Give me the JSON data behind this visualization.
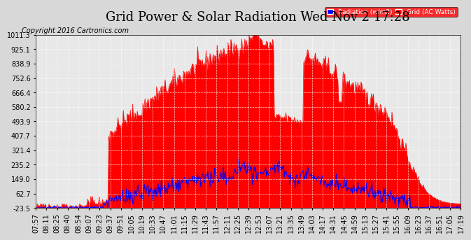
{
  "title": "Grid Power & Solar Radiation Wed Nov 2 17:28",
  "copyright": "Copyright 2016 Cartronics.com",
  "legend_radiation": "Radiation (w/m2)",
  "legend_grid": "Grid (AC Watts)",
  "y_ticks": [
    -23.5,
    62.7,
    149.0,
    235.2,
    321.4,
    407.7,
    493.9,
    580.2,
    666.4,
    752.6,
    838.9,
    925.1,
    1011.3
  ],
  "x_labels": [
    "07:57",
    "08:11",
    "08:25",
    "08:40",
    "08:54",
    "09:07",
    "09:23",
    "09:37",
    "09:51",
    "10:05",
    "10:19",
    "10:33",
    "10:47",
    "11:01",
    "11:15",
    "11:29",
    "11:43",
    "11:57",
    "12:11",
    "12:25",
    "12:39",
    "12:53",
    "13:07",
    "13:21",
    "13:35",
    "13:49",
    "14:03",
    "14:17",
    "14:31",
    "14:45",
    "14:59",
    "15:13",
    "15:27",
    "15:41",
    "15:55",
    "16:09",
    "16:23",
    "16:37",
    "16:51",
    "17:05",
    "17:19"
  ],
  "bg_color": "#d8d8d8",
  "plot_bg_color": "#e8e8e8",
  "grid_color": "#ffffff",
  "title_color": "#000000",
  "red_fill_color": "#ff0000",
  "blue_line_color": "#0000ff",
  "ymin": -23.5,
  "ymax": 1011.3,
  "title_fontsize": 13,
  "axis_fontsize": 7,
  "copyright_fontsize": 7
}
